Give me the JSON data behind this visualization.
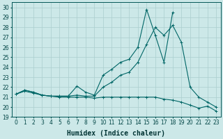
{
  "xlabel": "Humidex (Indice chaleur)",
  "bg_color": "#cce8e8",
  "grid_color": "#aacece",
  "line_color": "#006666",
  "xlim": [
    -0.5,
    23.5
  ],
  "ylim": [
    19,
    30.5
  ],
  "xticks": [
    0,
    1,
    2,
    3,
    4,
    5,
    6,
    7,
    8,
    9,
    10,
    11,
    12,
    13,
    14,
    15,
    16,
    17,
    18,
    19,
    20,
    21,
    22,
    23
  ],
  "yticks": [
    19,
    20,
    21,
    22,
    23,
    24,
    25,
    26,
    27,
    28,
    29,
    30
  ],
  "series1_x": [
    0,
    1,
    2,
    3,
    4,
    5,
    6,
    7,
    8,
    9,
    10,
    11,
    12,
    13,
    14,
    15,
    16,
    17,
    18
  ],
  "series1_y": [
    21.3,
    21.7,
    21.5,
    21.2,
    21.1,
    21.1,
    21.1,
    22.1,
    21.5,
    21.2,
    23.2,
    23.8,
    24.5,
    24.8,
    26.0,
    29.8,
    27.2,
    24.5,
    29.5
  ],
  "series2_x": [
    0,
    1,
    2,
    3,
    4,
    5,
    6,
    7,
    8,
    9,
    10,
    11,
    12,
    13,
    14,
    15,
    16,
    17,
    18,
    19,
    20,
    21,
    22,
    23
  ],
  "series2_y": [
    21.3,
    21.7,
    21.5,
    21.2,
    21.1,
    21.1,
    21.1,
    21.2,
    21.1,
    21.1,
    22.0,
    22.5,
    23.2,
    23.5,
    24.5,
    26.3,
    28.0,
    27.2,
    28.2,
    26.5,
    22.0,
    21.0,
    20.5,
    20.0
  ],
  "series3_x": [
    0,
    1,
    2,
    3,
    4,
    5,
    6,
    7,
    8,
    9,
    10,
    11,
    12,
    13,
    14,
    15,
    16,
    17,
    18,
    19,
    20,
    21,
    22,
    23
  ],
  "series3_y": [
    21.3,
    21.6,
    21.4,
    21.2,
    21.1,
    21.0,
    21.0,
    21.0,
    21.0,
    20.9,
    21.0,
    21.0,
    21.0,
    21.0,
    21.0,
    21.0,
    21.0,
    20.8,
    20.7,
    20.5,
    20.2,
    19.9,
    20.1,
    19.6
  ],
  "xlabel_fontsize": 7,
  "tick_fontsize": 5.5
}
